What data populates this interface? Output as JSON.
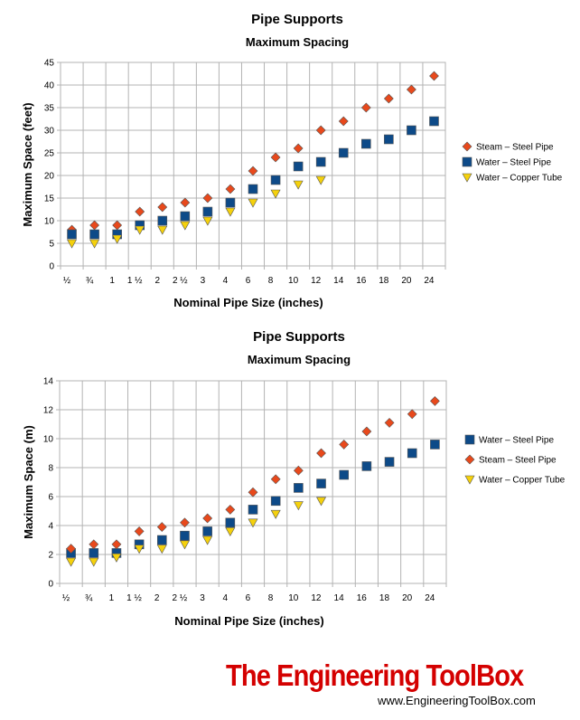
{
  "chart_data": [
    {
      "type": "scatter",
      "title": "Pipe Supports",
      "subtitle": "Maximum Spacing",
      "xlabel": "Nominal Pipe Size (inches)",
      "ylabel": "Maximum Space (feet)",
      "categories": [
        "½",
        "¾",
        "1",
        "1 ½",
        "2",
        "2 ½",
        "3",
        "4",
        "6",
        "8",
        "10",
        "12",
        "14",
        "16",
        "18",
        "20",
        "24"
      ],
      "ylim": [
        0,
        45
      ],
      "yticks": [
        0,
        5,
        10,
        15,
        20,
        25,
        30,
        35,
        40,
        45
      ],
      "grid": true,
      "legend_position": "right",
      "series": [
        {
          "name": "Steam – Steel Pipe",
          "marker": "diamond",
          "color": "#e8491c",
          "values": [
            8,
            9,
            9,
            12,
            13,
            14,
            15,
            17,
            21,
            24,
            26,
            30,
            32,
            35,
            37,
            39,
            42
          ]
        },
        {
          "name": "Water – Steel Pipe",
          "marker": "square",
          "color": "#0d4a88",
          "values": [
            7,
            7,
            7,
            9,
            10,
            11,
            12,
            14,
            17,
            19,
            22,
            23,
            25,
            27,
            28,
            30,
            32
          ]
        },
        {
          "name": "Water – Copper Tube",
          "marker": "triangle",
          "color": "#f5d10c",
          "values": [
            5,
            5,
            6,
            8,
            8,
            9,
            10,
            12,
            14,
            16,
            18,
            19,
            null,
            null,
            null,
            null,
            null
          ]
        }
      ]
    },
    {
      "type": "scatter",
      "title": "Pipe Supports",
      "subtitle": "Maximum Spacing",
      "xlabel": "Nominal Pipe Size (inches)",
      "ylabel": "Maximum Space (m)",
      "categories": [
        "½",
        "¾",
        "1",
        "1 ½",
        "2",
        "2 ½",
        "3",
        "4",
        "6",
        "8",
        "10",
        "12",
        "14",
        "16",
        "18",
        "20",
        "24"
      ],
      "ylim": [
        0,
        14
      ],
      "yticks": [
        0,
        2,
        4,
        6,
        8,
        10,
        12,
        14
      ],
      "grid": true,
      "legend_position": "right",
      "series": [
        {
          "name": "Water – Steel Pipe",
          "marker": "square",
          "color": "#0d4a88",
          "values": [
            2.1,
            2.1,
            2.1,
            2.7,
            3.0,
            3.3,
            3.6,
            4.2,
            5.1,
            5.7,
            6.6,
            6.9,
            7.5,
            8.1,
            8.4,
            9.0,
            9.6
          ]
        },
        {
          "name": "Steam – Steel Pipe",
          "marker": "diamond",
          "color": "#e8491c",
          "values": [
            2.4,
            2.7,
            2.7,
            3.6,
            3.9,
            4.2,
            4.5,
            5.1,
            6.3,
            7.2,
            7.8,
            9.0,
            9.6,
            10.5,
            11.1,
            11.7,
            12.6
          ]
        },
        {
          "name": "Water – Copper Tube",
          "marker": "triangle",
          "color": "#f5d10c",
          "values": [
            1.5,
            1.5,
            1.8,
            2.4,
            2.4,
            2.7,
            3.0,
            3.6,
            4.2,
            4.8,
            5.4,
            5.7,
            null,
            null,
            null,
            null,
            null
          ]
        }
      ]
    }
  ],
  "branding": {
    "name": "The Engineering ToolBox",
    "url": "www.EngineeringToolBox.com"
  }
}
